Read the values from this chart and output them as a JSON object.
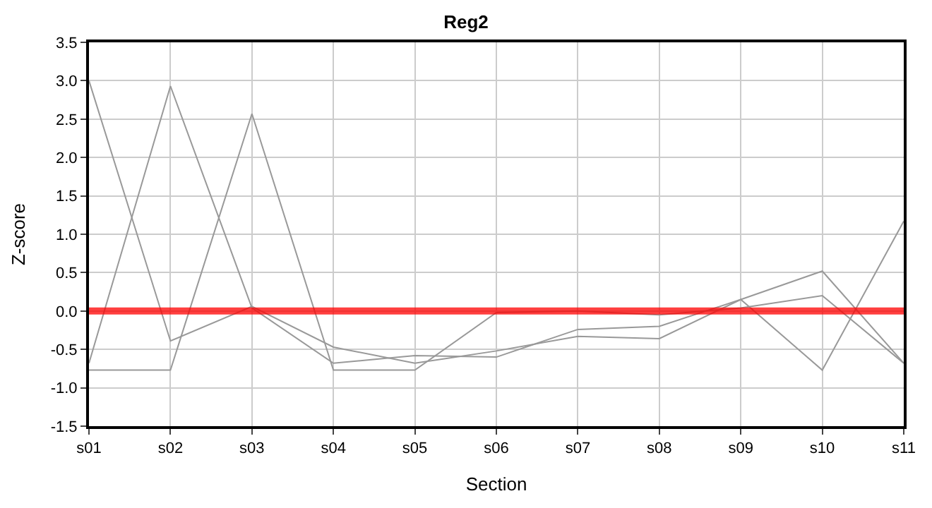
{
  "chart_data": {
    "type": "line",
    "title": "Reg2",
    "xlabel": "Section",
    "ylabel": "Z-score",
    "categories": [
      "s01",
      "s02",
      "s03",
      "s04",
      "s05",
      "s06",
      "s07",
      "s08",
      "s09",
      "s10",
      "s11"
    ],
    "series": [
      {
        "color": "#999999",
        "values": [
          3.0,
          -0.39,
          0.06,
          -0.47,
          -0.68,
          -0.52,
          -0.33,
          -0.36,
          0.15,
          -0.77,
          1.17
        ]
      },
      {
        "color": "#999999",
        "values": [
          -0.68,
          2.93,
          0.04,
          -0.68,
          -0.58,
          -0.6,
          -0.24,
          -0.2,
          0.15,
          0.52,
          -0.68
        ]
      },
      {
        "color": "#999999",
        "values": [
          -0.77,
          -0.77,
          2.57,
          -0.77,
          -0.77,
          -0.02,
          0.0,
          -0.05,
          0.04,
          0.2,
          -0.68
        ]
      }
    ],
    "ylim": [
      -1.5,
      3.5
    ],
    "yticks": [
      {
        "value": -1.5,
        "label": "-1.5"
      },
      {
        "value": -1.0,
        "label": "-1.0"
      },
      {
        "value": -0.5,
        "label": "-0.5"
      },
      {
        "value": 0,
        "label": "0.0"
      },
      {
        "value": 0.5,
        "label": "0.5"
      },
      {
        "value": 1.0,
        "label": "1.0"
      },
      {
        "value": 1.5,
        "label": "1.5"
      },
      {
        "value": 2.0,
        "label": "2.0"
      },
      {
        "value": 2.5,
        "label": "2.5"
      },
      {
        "value": 3.0,
        "label": "3.0"
      },
      {
        "value": 3.5,
        "label": "3.5"
      }
    ],
    "ref_lines": [
      {
        "axis": "y",
        "value": 0,
        "color": "#ff0000"
      }
    ],
    "grid": true,
    "marker": "none",
    "line_style": "solid"
  }
}
